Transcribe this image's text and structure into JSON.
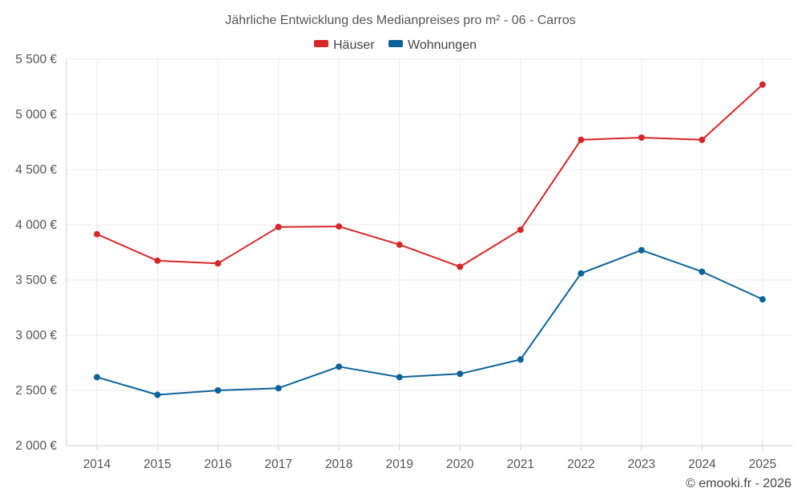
{
  "chart_data": {
    "type": "line",
    "title": "Jährliche Entwicklung des Medianpreises pro m² - 06 - Carros",
    "categories": [
      "2014",
      "2015",
      "2016",
      "2017",
      "2018",
      "2019",
      "2020",
      "2021",
      "2022",
      "2023",
      "2024",
      "2025"
    ],
    "series": [
      {
        "name": "Häuser",
        "color": "#d62728",
        "values": [
          3915,
          3675,
          3650,
          3980,
          3985,
          3820,
          3620,
          3955,
          4770,
          4790,
          4770,
          5270
        ]
      },
      {
        "name": "Wohnungen",
        "color": "#0d6399",
        "values": [
          2620,
          2460,
          2500,
          2520,
          2715,
          2620,
          2650,
          2780,
          3560,
          3770,
          3575,
          3325
        ]
      }
    ],
    "ylim": [
      2000,
      5500
    ],
    "yticks": [
      2000,
      2500,
      3000,
      3500,
      4000,
      4500,
      5000,
      5500
    ],
    "ytick_labels": [
      "2 000 €",
      "2 500 €",
      "3 000 €",
      "3 500 €",
      "4 000 €",
      "4 500 €",
      "5 000 €",
      "5 500 €"
    ],
    "xlabel": "",
    "ylabel": "",
    "grid": true,
    "legend_position": "top-center"
  },
  "credit": "© emooki.fr - 2026"
}
